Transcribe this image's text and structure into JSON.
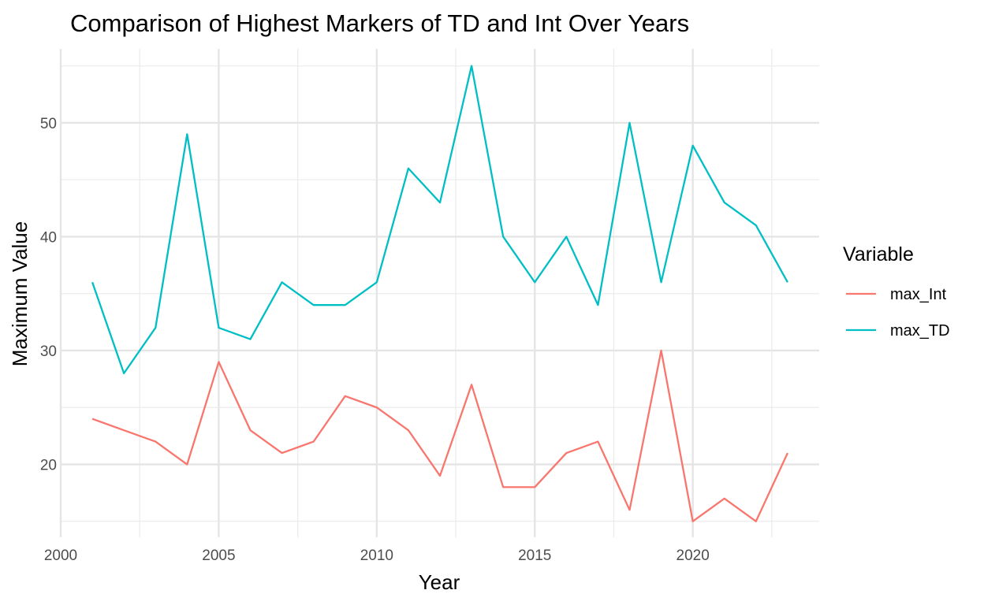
{
  "chart_data": {
    "type": "line",
    "title": "Comparison of Highest Markers of TD and Int Over Years",
    "xlabel": "Year",
    "ylabel": "Maximum Value",
    "xlim": [
      2000,
      2024
    ],
    "ylim": [
      13.6,
      56.5
    ],
    "x_ticks": [
      2000,
      2005,
      2010,
      2015,
      2020
    ],
    "y_ticks": [
      20,
      30,
      40,
      50
    ],
    "grid": true,
    "legend": {
      "title": "Variable",
      "position": "right"
    },
    "x": [
      2001,
      2002,
      2003,
      2004,
      2005,
      2006,
      2007,
      2008,
      2009,
      2010,
      2011,
      2012,
      2013,
      2014,
      2015,
      2016,
      2017,
      2018,
      2019,
      2020,
      2021,
      2022,
      2023
    ],
    "series": [
      {
        "name": "max_Int",
        "color": "#F8766D",
        "values": [
          24,
          23,
          22,
          20,
          29,
          23,
          21,
          22,
          26,
          25,
          23,
          19,
          27,
          18,
          18,
          21,
          22,
          16,
          30,
          15,
          17,
          15,
          21
        ]
      },
      {
        "name": "max_TD",
        "color": "#00BFC4",
        "values": [
          36,
          28,
          32,
          49,
          32,
          31,
          36,
          34,
          34,
          36,
          46,
          43,
          55,
          40,
          36,
          40,
          34,
          50,
          36,
          48,
          43,
          41,
          36
        ]
      }
    ]
  }
}
